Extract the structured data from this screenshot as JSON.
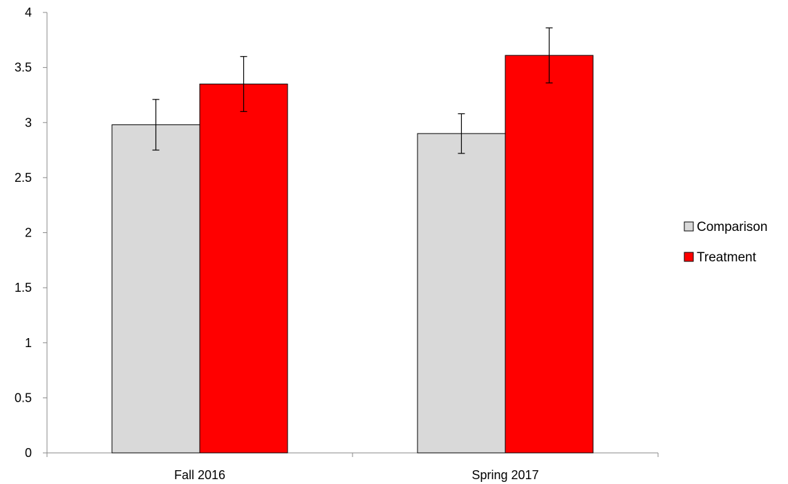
{
  "chart_data": {
    "type": "bar",
    "categories": [
      "Fall 2016",
      "Spring 2017"
    ],
    "series": [
      {
        "name": "Comparison",
        "values": [
          2.98,
          2.9
        ],
        "error": [
          0.23,
          0.18
        ],
        "color": "#d9d9d9"
      },
      {
        "name": "Treatment",
        "values": [
          3.35,
          3.61
        ],
        "error": [
          0.25,
          0.25
        ],
        "color": "#ff0000"
      }
    ],
    "y_ticks": [
      "0",
      "0.5",
      "1",
      "1.5",
      "2",
      "2.5",
      "3",
      "3.5",
      "4"
    ],
    "ylim": [
      0,
      4
    ],
    "title": "",
    "xlabel": "",
    "ylabel": "",
    "grid": false,
    "legend_position": "right"
  }
}
